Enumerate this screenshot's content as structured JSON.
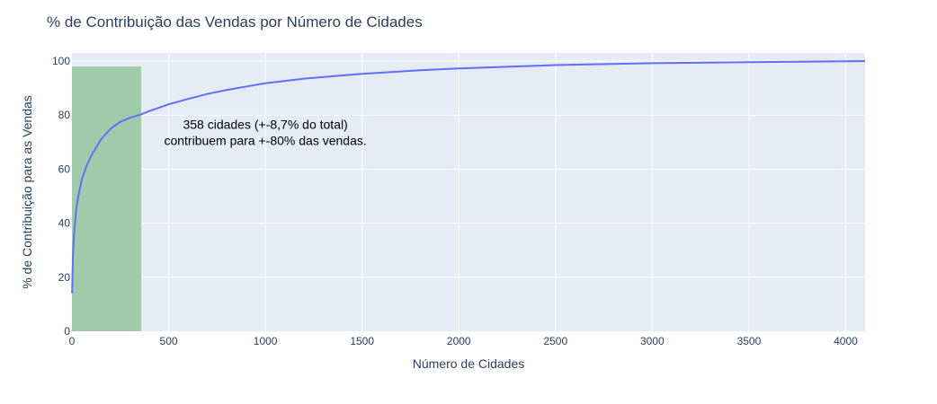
{
  "chart_data": {
    "type": "line",
    "title": "% de Contribuição das Vendas por Número de Cidades",
    "xlabel": "Número de Cidades",
    "ylabel": "% de Contribuição para as Vendas",
    "xlim": [
      0,
      4100
    ],
    "ylim": [
      0,
      103
    ],
    "x_ticks": [
      0,
      500,
      1000,
      1500,
      2000,
      2500,
      3000,
      3500,
      4000
    ],
    "y_ticks": [
      0,
      20,
      40,
      60,
      80,
      100
    ],
    "grid": true,
    "highlight_bar": {
      "x_start": 0,
      "x_end": 358,
      "value": 98,
      "color": "#a0cbaa"
    },
    "series": [
      {
        "color": "#636efa",
        "x": [
          1,
          5,
          10,
          20,
          30,
          50,
          75,
          100,
          150,
          200,
          250,
          300,
          358,
          400,
          500,
          600,
          700,
          800,
          1000,
          1200,
          1500,
          1800,
          2000,
          2500,
          3000,
          3500,
          4000,
          4100
        ],
        "y": [
          14,
          28,
          35,
          44,
          49,
          56,
          61,
          65,
          71,
          75,
          77.5,
          79,
          80.3,
          81.5,
          84,
          86,
          87.8,
          89.3,
          91.8,
          93.5,
          95.3,
          96.6,
          97.3,
          98.5,
          99.2,
          99.6,
          99.9,
          100
        ]
      }
    ],
    "annotation": {
      "line1": "358 cidades (+-8,7% do total)",
      "line2": "contribuem para +-80% das vendas.",
      "x": 1000,
      "y": 72
    }
  },
  "colors": {
    "plot_background": "#e5ecf6",
    "grid": "#ffffff",
    "text": "#2a3f5f"
  }
}
